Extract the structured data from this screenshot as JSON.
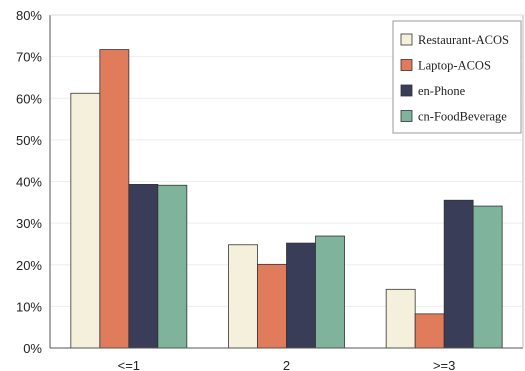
{
  "chart_data": {
    "type": "bar",
    "categories": [
      "<=1",
      "2",
      ">=3"
    ],
    "series": [
      {
        "name": "Restaurant-ACOS",
        "values": [
          61.2,
          24.8,
          14.1
        ],
        "color": "#f5f0dc"
      },
      {
        "name": "Laptop-ACOS",
        "values": [
          71.7,
          20.1,
          8.2
        ],
        "color": "#e07b5c"
      },
      {
        "name": "en-Phone",
        "values": [
          39.3,
          25.2,
          35.5
        ],
        "color": "#3a3d58"
      },
      {
        "name": "cn-FoodBeverage",
        "values": [
          39.1,
          26.9,
          34.1
        ],
        "color": "#7fb39b"
      }
    ],
    "title": "",
    "xlabel": "",
    "ylabel": "",
    "ylim": [
      0,
      80
    ],
    "yticks": [
      "0%",
      "10%",
      "20%",
      "30%",
      "40%",
      "50%",
      "60%",
      "70%",
      "80%"
    ],
    "grid": true,
    "legend_position": "top-right"
  }
}
